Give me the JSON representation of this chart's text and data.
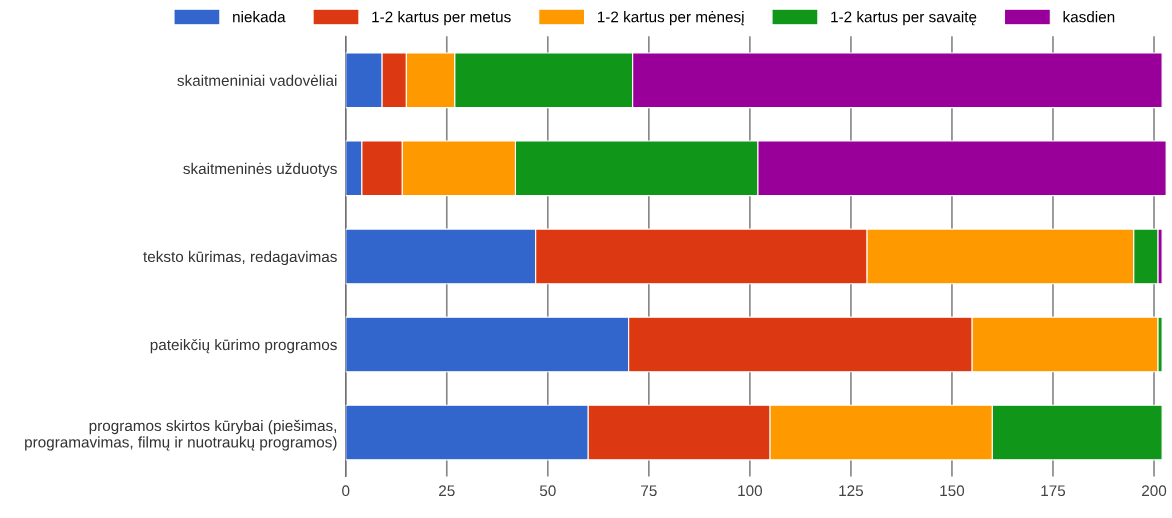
{
  "chart_data": {
    "type": "bar",
    "orientation": "horizontal",
    "stacked": true,
    "categories": [
      "skaitmeniniai vadovėliai",
      "skaitmeninės užduotys",
      "teksto kūrimas, redagavimas",
      "pateikčių kūrimo programos",
      "programos skirtos kūrybai (piešimas,\nprogramavimas, filmų ir nuotraukų programos)"
    ],
    "series": [
      {
        "name": "niekada",
        "color": "#3366cc",
        "values": [
          9,
          4,
          47,
          70,
          60
        ]
      },
      {
        "name": "1-2 kartus per metus",
        "color": "#dc3912",
        "values": [
          6,
          10,
          82,
          85,
          45
        ]
      },
      {
        "name": "1-2 kartus per mėnesį",
        "color": "#ff9900",
        "values": [
          12,
          28,
          66,
          46,
          55
        ]
      },
      {
        "name": "1-2 kartus per savaitę",
        "color": "#109618",
        "values": [
          44,
          60,
          6,
          1,
          42
        ]
      },
      {
        "name": "kasdien",
        "color": "#990099",
        "values": [
          131,
          101,
          1,
          0,
          0
        ]
      }
    ],
    "xlim": [
      0,
      203
    ],
    "xticks": [
      0,
      25,
      50,
      75,
      100,
      125,
      150,
      175,
      200
    ],
    "grid": "x",
    "legend": "top"
  }
}
